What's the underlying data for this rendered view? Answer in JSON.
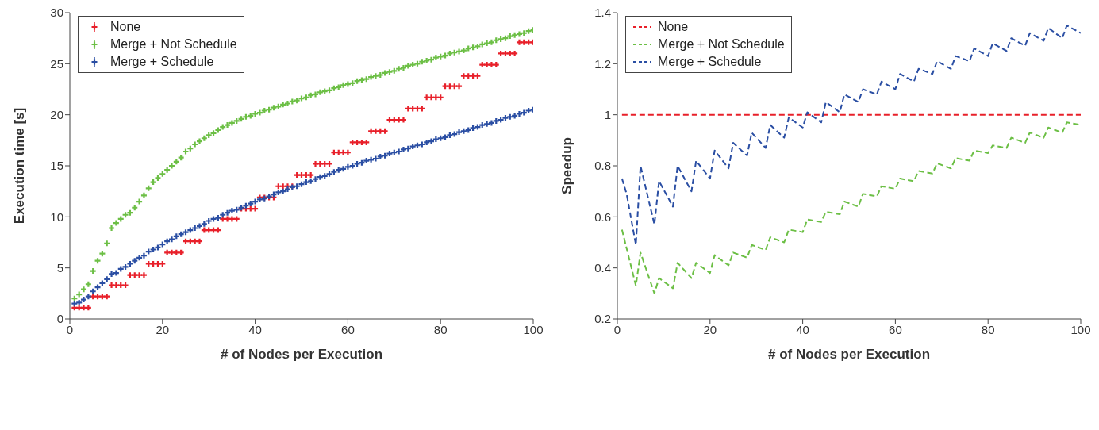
{
  "chart_data": [
    {
      "type": "scatter",
      "xlabel": "# of Nodes per Execution",
      "ylabel": "Execution time [s]",
      "xlim": [
        0,
        100
      ],
      "xticks": [
        0,
        20,
        40,
        60,
        80,
        100
      ],
      "ylim": [
        0,
        30
      ],
      "yticks": [
        0,
        5,
        10,
        15,
        20,
        25,
        30
      ],
      "grid": false,
      "legend": "top left",
      "marker": "cross",
      "x": [
        1,
        2,
        3,
        4,
        5,
        6,
        7,
        8,
        9,
        10,
        11,
        12,
        13,
        14,
        15,
        16,
        17,
        18,
        19,
        20,
        21,
        22,
        23,
        24,
        25,
        26,
        27,
        28,
        29,
        30,
        31,
        32,
        33,
        34,
        35,
        36,
        37,
        38,
        39,
        40,
        41,
        42,
        43,
        44,
        45,
        46,
        47,
        48,
        49,
        50,
        51,
        52,
        53,
        54,
        55,
        56,
        57,
        58,
        59,
        60,
        61,
        62,
        63,
        64,
        65,
        66,
        67,
        68,
        69,
        70,
        71,
        72,
        73,
        74,
        75,
        76,
        77,
        78,
        79,
        80,
        81,
        82,
        83,
        84,
        85,
        86,
        87,
        88,
        89,
        90,
        91,
        92,
        93,
        94,
        95,
        96,
        97,
        98,
        99,
        100
      ],
      "series": [
        {
          "name": "None",
          "color": "#e8202a",
          "values": [
            1.1,
            1.1,
            1.1,
            1.1,
            2.2,
            2.2,
            2.2,
            2.2,
            3.3,
            3.3,
            3.3,
            3.3,
            4.3,
            4.3,
            4.3,
            4.3,
            5.4,
            5.4,
            5.4,
            5.4,
            6.5,
            6.5,
            6.5,
            6.5,
            7.6,
            7.6,
            7.6,
            7.6,
            8.7,
            8.7,
            8.7,
            8.7,
            9.8,
            9.8,
            9.8,
            9.8,
            10.8,
            10.8,
            10.8,
            10.8,
            11.9,
            11.9,
            11.9,
            11.9,
            13.0,
            13.0,
            13.0,
            13.0,
            14.1,
            14.1,
            14.1,
            14.1,
            15.2,
            15.2,
            15.2,
            15.2,
            16.3,
            16.3,
            16.3,
            16.3,
            17.3,
            17.3,
            17.3,
            17.3,
            18.4,
            18.4,
            18.4,
            18.4,
            19.5,
            19.5,
            19.5,
            19.5,
            20.6,
            20.6,
            20.6,
            20.6,
            21.7,
            21.7,
            21.7,
            21.7,
            22.8,
            22.8,
            22.8,
            22.8,
            23.8,
            23.8,
            23.8,
            23.8,
            24.9,
            24.9,
            24.9,
            24.9,
            26.0,
            26.0,
            26.0,
            26.0,
            27.1,
            27.1,
            27.1,
            27.1
          ]
        },
        {
          "name": "Merge + Not Schedule",
          "color": "#6cbf45",
          "values": [
            2.0,
            2.4,
            2.9,
            3.4,
            4.7,
            5.7,
            6.4,
            7.4,
            8.9,
            9.4,
            9.8,
            10.2,
            10.4,
            10.9,
            11.5,
            12.1,
            12.8,
            13.4,
            13.8,
            14.2,
            14.6,
            15.0,
            15.4,
            15.8,
            16.4,
            16.7,
            17.1,
            17.4,
            17.7,
            18.0,
            18.2,
            18.5,
            18.8,
            19.0,
            19.2,
            19.4,
            19.6,
            19.8,
            19.9,
            20.1,
            20.2,
            20.4,
            20.5,
            20.7,
            20.8,
            21.0,
            21.1,
            21.3,
            21.4,
            21.6,
            21.7,
            21.9,
            22.0,
            22.2,
            22.3,
            22.4,
            22.6,
            22.7,
            22.9,
            23.0,
            23.1,
            23.3,
            23.4,
            23.5,
            23.7,
            23.8,
            23.9,
            24.1,
            24.2,
            24.3,
            24.5,
            24.6,
            24.8,
            24.9,
            25.0,
            25.2,
            25.3,
            25.4,
            25.6,
            25.7,
            25.8,
            26.0,
            26.1,
            26.2,
            26.3,
            26.5,
            26.6,
            26.7,
            26.9,
            27.0,
            27.1,
            27.3,
            27.4,
            27.5,
            27.7,
            27.8,
            27.9,
            28.0,
            28.2,
            28.3
          ]
        },
        {
          "name": "Merge + Schedule",
          "color": "#2a4ea3",
          "values": [
            1.5,
            1.6,
            1.9,
            2.2,
            2.7,
            3.1,
            3.5,
            3.9,
            4.4,
            4.5,
            4.9,
            5.1,
            5.4,
            5.7,
            6.0,
            6.2,
            6.6,
            6.8,
            7.0,
            7.3,
            7.6,
            7.8,
            8.1,
            8.3,
            8.5,
            8.7,
            8.9,
            9.1,
            9.3,
            9.6,
            9.8,
            9.9,
            10.2,
            10.4,
            10.6,
            10.7,
            10.9,
            11.1,
            11.3,
            11.5,
            11.7,
            11.8,
            12.0,
            12.2,
            12.4,
            12.5,
            12.7,
            12.9,
            13.0,
            13.2,
            13.4,
            13.5,
            13.7,
            13.9,
            14.0,
            14.2,
            14.4,
            14.6,
            14.7,
            14.9,
            15.0,
            15.2,
            15.3,
            15.5,
            15.6,
            15.7,
            15.9,
            16.0,
            16.2,
            16.3,
            16.4,
            16.6,
            16.7,
            16.9,
            17.0,
            17.1,
            17.3,
            17.4,
            17.6,
            17.7,
            17.8,
            18.0,
            18.1,
            18.3,
            18.4,
            18.5,
            18.7,
            18.8,
            19.0,
            19.1,
            19.2,
            19.4,
            19.5,
            19.7,
            19.8,
            19.9,
            20.1,
            20.2,
            20.4,
            20.5
          ]
        }
      ]
    },
    {
      "type": "line",
      "xlabel": "# of Nodes per Execution",
      "ylabel": "Speedup",
      "xlim": [
        0,
        100
      ],
      "xticks": [
        0,
        20,
        40,
        60,
        80,
        100
      ],
      "ylim": [
        0.2,
        1.4
      ],
      "yticks": [
        0.2,
        0.4,
        0.6,
        0.8,
        1,
        1.2,
        1.4
      ],
      "grid": false,
      "legend": "top left",
      "line_style": "dashed",
      "series": [
        {
          "name": "None",
          "color": "#e8202a",
          "x": [
            1,
            100
          ],
          "values": [
            1,
            1
          ]
        },
        {
          "name": "Merge + Not Schedule",
          "color": "#6cbf45",
          "x": [
            1,
            4,
            5,
            8,
            9,
            12,
            13,
            16,
            17,
            20,
            21,
            24,
            25,
            28,
            29,
            32,
            33,
            36,
            37,
            40,
            41,
            44,
            45,
            48,
            49,
            52,
            53,
            56,
            57,
            60,
            61,
            64,
            65,
            68,
            69,
            72,
            73,
            76,
            77,
            80,
            81,
            84,
            85,
            88,
            89,
            92,
            93,
            96,
            97,
            100
          ],
          "values": [
            0.55,
            0.33,
            0.46,
            0.3,
            0.36,
            0.32,
            0.42,
            0.36,
            0.42,
            0.38,
            0.45,
            0.41,
            0.46,
            0.44,
            0.49,
            0.47,
            0.52,
            0.5,
            0.55,
            0.54,
            0.59,
            0.58,
            0.62,
            0.61,
            0.66,
            0.64,
            0.69,
            0.68,
            0.72,
            0.71,
            0.75,
            0.74,
            0.78,
            0.77,
            0.81,
            0.79,
            0.83,
            0.82,
            0.86,
            0.85,
            0.88,
            0.87,
            0.91,
            0.89,
            0.93,
            0.91,
            0.95,
            0.93,
            0.97,
            0.96
          ]
        },
        {
          "name": "Merge + Schedule",
          "color": "#2a4ea3",
          "x": [
            1,
            2,
            4,
            5,
            8,
            9,
            12,
            13,
            16,
            17,
            20,
            21,
            24,
            25,
            28,
            29,
            32,
            33,
            36,
            37,
            40,
            41,
            44,
            45,
            48,
            49,
            52,
            53,
            56,
            57,
            60,
            61,
            64,
            65,
            68,
            69,
            72,
            73,
            76,
            77,
            80,
            81,
            84,
            85,
            88,
            89,
            92,
            93,
            96,
            97,
            100
          ],
          "values": [
            0.75,
            0.69,
            0.49,
            0.8,
            0.57,
            0.74,
            0.64,
            0.8,
            0.7,
            0.82,
            0.75,
            0.86,
            0.79,
            0.89,
            0.84,
            0.93,
            0.87,
            0.96,
            0.91,
            0.99,
            0.95,
            1.01,
            0.97,
            1.05,
            1.01,
            1.08,
            1.05,
            1.1,
            1.08,
            1.13,
            1.1,
            1.16,
            1.13,
            1.18,
            1.16,
            1.21,
            1.18,
            1.23,
            1.21,
            1.26,
            1.23,
            1.28,
            1.25,
            1.3,
            1.27,
            1.32,
            1.29,
            1.34,
            1.3,
            1.35,
            1.32
          ]
        }
      ]
    }
  ]
}
